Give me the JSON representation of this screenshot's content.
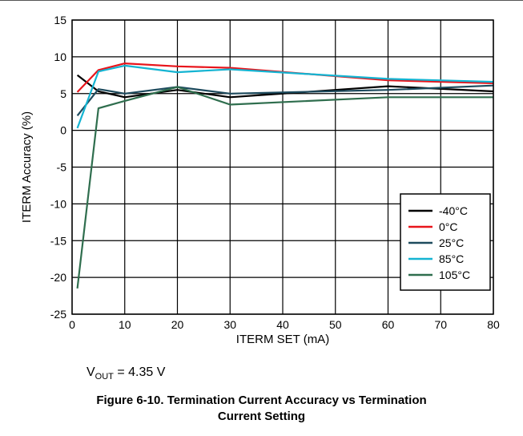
{
  "chart_data": {
    "type": "line",
    "xlabel": "ITERM SET (mA)",
    "ylabel": "ITERM Accuracy (%)",
    "xlim": [
      0,
      80
    ],
    "ylim": [
      -25,
      15
    ],
    "xticks": [
      0,
      10,
      20,
      30,
      40,
      50,
      60,
      70,
      80
    ],
    "yticks": [
      15,
      10,
      5,
      0,
      -5,
      -10,
      -15,
      -20,
      -25
    ],
    "grid": true,
    "legend_position": "bottom-right",
    "series": [
      {
        "name": "-40°C",
        "color": "#000000",
        "x": [
          1,
          5,
          10,
          20,
          30,
          60,
          80
        ],
        "y": [
          7.5,
          5.3,
          4.5,
          5.5,
          4.5,
          6.0,
          5.3
        ]
      },
      {
        "name": "0°C",
        "color": "#e8141b",
        "x": [
          1,
          5,
          10,
          20,
          30,
          60,
          80
        ],
        "y": [
          5.2,
          8.2,
          9.1,
          8.7,
          8.5,
          6.8,
          6.4
        ]
      },
      {
        "name": "25°C",
        "color": "#1e4b5e",
        "x": [
          1,
          5,
          10,
          20,
          30,
          60,
          80
        ],
        "y": [
          2.0,
          5.6,
          5.0,
          5.9,
          5.0,
          5.5,
          6.1
        ]
      },
      {
        "name": "85°C",
        "color": "#14b4d2",
        "x": [
          1,
          5,
          10,
          20,
          30,
          60,
          80
        ],
        "y": [
          0.3,
          8.0,
          8.8,
          7.9,
          8.3,
          7.0,
          6.6
        ]
      },
      {
        "name": "105°C",
        "color": "#2f6e4e",
        "x": [
          1,
          5,
          10,
          20,
          30,
          60,
          80
        ],
        "y": [
          -21.5,
          3.0,
          4.0,
          5.9,
          3.5,
          4.5,
          4.5
        ]
      }
    ]
  },
  "note": {
    "prefix": "V",
    "sub": "OUT",
    "suffix": " = 4.35 V"
  },
  "caption": {
    "line1": "Figure 6-10. Termination Current Accuracy vs Termination",
    "line2": "Current Setting"
  }
}
